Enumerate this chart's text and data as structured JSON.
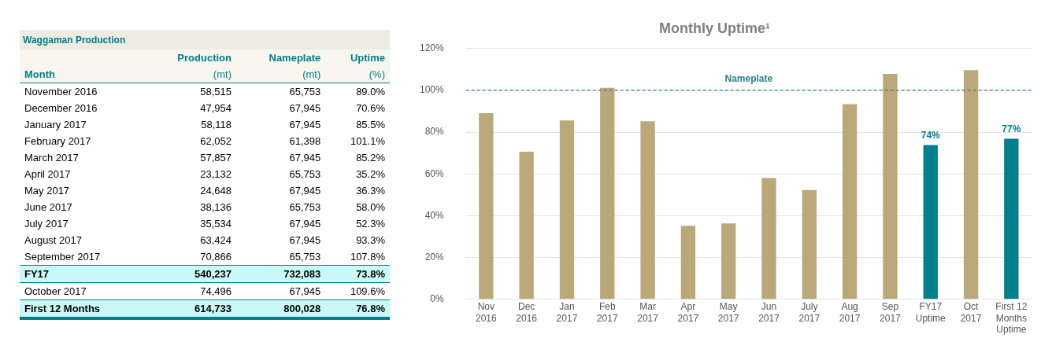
{
  "chart_data": [
    {
      "type": "other",
      "title": "Waggaman Production",
      "xlabel": "Month",
      "categories": [
        "November  2016",
        "December 2016",
        "January 2017",
        "February 2017",
        "March 2017",
        "April 2017",
        "May 2017",
        "June 2017",
        "July 2017",
        "August 2017",
        "September 2017",
        "FY17",
        "October 2017",
        "First 12 Months"
      ],
      "colors": [
        null,
        null,
        null,
        null,
        null,
        null,
        null,
        null,
        null,
        null,
        null,
        "#ccf7f7",
        null,
        "#ccf7f7"
      ],
      "annotations": [
        "(mt)",
        "(mt)",
        "(%)"
      ],
      "series": [
        {
          "name": "Production",
          "values": [
            58515,
            47954,
            58118,
            62052,
            57857,
            23132,
            24648,
            38136,
            35534,
            63424,
            70866,
            540237,
            74496,
            614733
          ],
          "value_labels": [
            "58,515",
            "47,954",
            "58,118",
            "62,052",
            "57,857",
            "23,132",
            "24,648",
            "38,136",
            "35,534",
            "63,424",
            "70,866",
            "540,237",
            "74,496",
            "614,733"
          ]
        },
        {
          "name": "Nameplate",
          "values": [
            65753,
            67945,
            67945,
            61398,
            67945,
            65753,
            67945,
            65753,
            67945,
            67945,
            65753,
            732083,
            67945,
            800028
          ],
          "value_labels": [
            "65,753",
            "67,945",
            "67,945",
            "61,398",
            "67,945",
            "65,753",
            "67,945",
            "65,753",
            "67,945",
            "67,945",
            "65,753",
            "732,083",
            "67,945",
            "800,028"
          ]
        },
        {
          "name": "Uptime",
          "values": [
            89.0,
            70.6,
            85.5,
            101.1,
            85.2,
            35.2,
            36.3,
            58.0,
            52.3,
            93.3,
            107.8,
            73.8,
            109.6,
            76.8
          ],
          "value_labels": [
            "89.0%",
            "70.6%",
            "85.5%",
            "101.1%",
            "85.2%",
            "35.2%",
            "36.3%",
            "58.0%",
            "52.3%",
            "93.3%",
            "107.8%",
            "73.8%",
            "109.6%",
            "76.8%"
          ]
        }
      ]
    },
    {
      "type": "bar",
      "title": "Monthly Uptime¹",
      "categories": [
        "Nov\n2016",
        "Dec\n2016",
        "Jan\n2017",
        "Feb\n2017",
        "Mar\n2017",
        "Apr\n2017",
        "May\n2017",
        "Jun\n2017",
        "July\n2017",
        "Aug\n2017",
        "Sep\n2017",
        "FY17\nUptime",
        "Oct\n2017",
        "First 12\nMonths\nUptime"
      ],
      "values": [
        89.0,
        70.6,
        85.5,
        101.1,
        85.2,
        35.2,
        36.3,
        58.0,
        52.3,
        93.3,
        107.8,
        73.8,
        109.6,
        76.8
      ],
      "colors": [
        "#bba878",
        "#bba878",
        "#bba878",
        "#bba878",
        "#bba878",
        "#bba878",
        "#bba878",
        "#bba878",
        "#bba878",
        "#bba878",
        "#bba878",
        "#00808a",
        "#bba878",
        "#00808a"
      ],
      "value_labels": [
        null,
        null,
        null,
        null,
        null,
        null,
        null,
        null,
        null,
        null,
        null,
        "74%",
        null,
        "77%"
      ],
      "ylim": [
        0,
        120
      ],
      "yticks": [
        {
          "value": 0,
          "label": "0%"
        },
        {
          "value": 20,
          "label": "20%"
        },
        {
          "value": 40,
          "label": "40%"
        },
        {
          "value": 60,
          "label": "60%"
        },
        {
          "value": 80,
          "label": "80%"
        },
        {
          "value": 100,
          "label": "100%"
        },
        {
          "value": 120,
          "label": "120%"
        }
      ],
      "grid": "y",
      "legend": false,
      "ref_lines": [
        {
          "axis": "y",
          "value": 100,
          "label": "Nameplate",
          "color": "#2f7f8f",
          "line_style": "dashed"
        }
      ]
    }
  ]
}
